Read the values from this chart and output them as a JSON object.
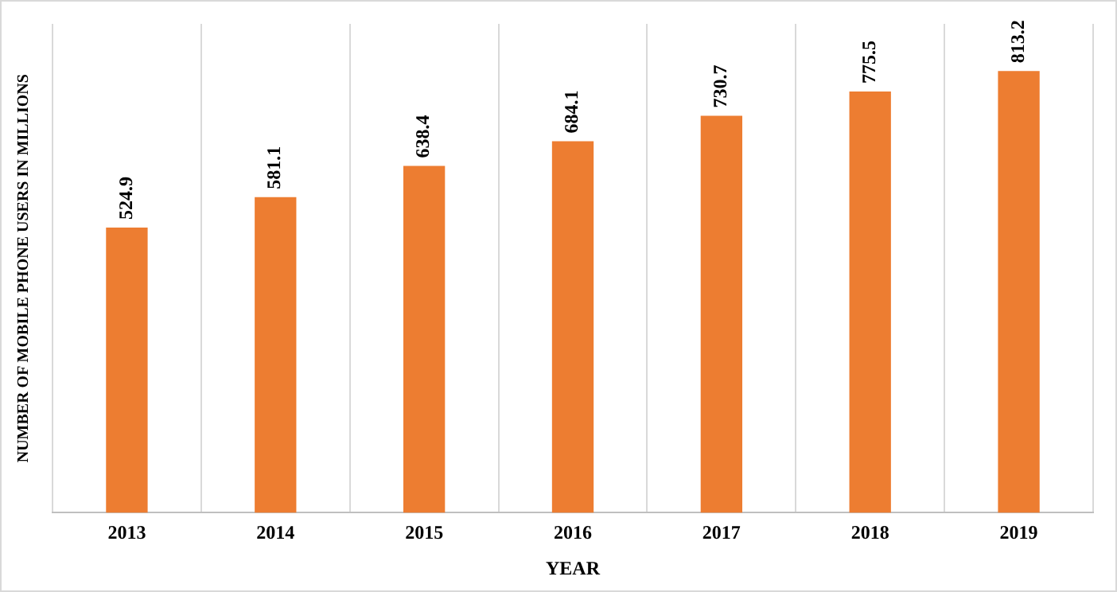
{
  "chart_data": {
    "type": "bar",
    "xlabel": "YEAR",
    "ylabel": "NUMBER OF MOBILE PHONE USERS IN MILLIONS",
    "categories": [
      "2013",
      "2014",
      "2015",
      "2016",
      "2017",
      "2018",
      "2019"
    ],
    "values": [
      524.9,
      581.1,
      638.4,
      684.1,
      730.7,
      775.5,
      813.2
    ],
    "color": "#ed7d31",
    "relative": false,
    "data_labels": true,
    "grid": "x",
    "legend": false
  }
}
